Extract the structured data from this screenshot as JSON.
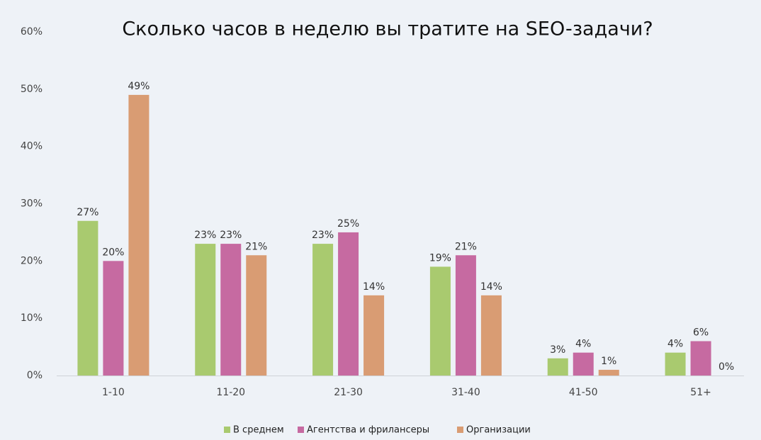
{
  "chart_data": {
    "type": "bar",
    "title": "Сколько часов в неделю вы тратите на SEO-задачи?",
    "categories": [
      "1-10",
      "11-20",
      "21-30",
      "31-40",
      "41-50",
      "51+"
    ],
    "series": [
      {
        "name": "В среднем",
        "color": "#a9ca6f",
        "values": [
          27,
          23,
          23,
          19,
          3,
          4
        ],
        "value_labels": [
          "27%",
          "23%",
          "23%",
          "19%",
          "3%",
          "4%"
        ]
      },
      {
        "name": "Агентства и фрилансеры",
        "color": "#c66aa1",
        "values": [
          20,
          23,
          25,
          21,
          4,
          6
        ],
        "value_labels": [
          "20%",
          "23%",
          "25%",
          "21%",
          "4%",
          "6%"
        ]
      },
      {
        "name": "Организации",
        "color": "#d99c73",
        "values": [
          49,
          21,
          14,
          14,
          1,
          0
        ],
        "value_labels": [
          "49%",
          "21%",
          "14%",
          "14%",
          "1%",
          "0%"
        ]
      }
    ],
    "ylim": [
      0,
      60
    ],
    "yticks": [
      {
        "value": 0,
        "label": "0%"
      },
      {
        "value": 10,
        "label": "10%"
      },
      {
        "value": 20,
        "label": "20%"
      },
      {
        "value": 30,
        "label": "30%"
      },
      {
        "value": 40,
        "label": "40%"
      },
      {
        "value": 50,
        "label": "50%"
      },
      {
        "value": 60,
        "label": "60%"
      }
    ],
    "grid": false,
    "legend": "bottom"
  }
}
